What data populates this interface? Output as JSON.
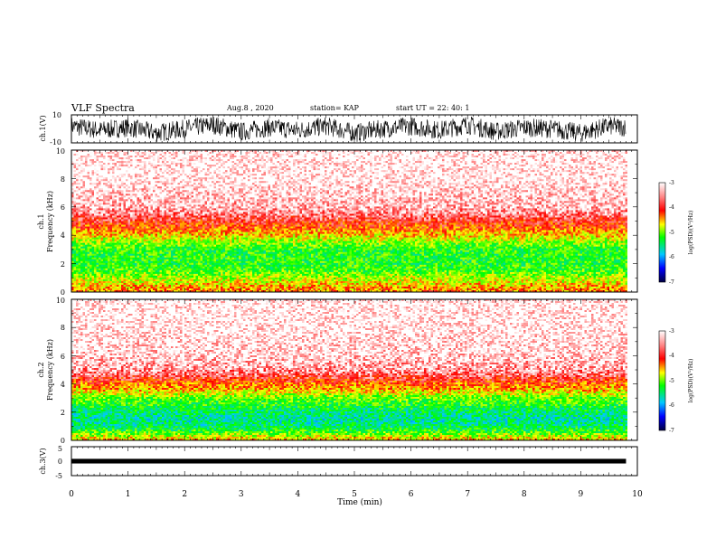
{
  "header": {
    "title": "VLF Spectra",
    "date": "Aug.8  , 2020",
    "station": "station= KAP",
    "start": "start  UT  =   22: 40: 1"
  },
  "chart_data": [
    {
      "type": "line",
      "panel": "ch1-waveform",
      "ylabel": "ch.1(V)",
      "ylim": [
        -10,
        10
      ],
      "ytick_labels": [
        "10",
        "-10"
      ],
      "xlim": [
        0,
        10
      ],
      "x_end": 9.8,
      "x": [
        0,
        0.5,
        1.0,
        1.5,
        2.0,
        2.5,
        3.0,
        3.5,
        4.0,
        4.5,
        5.0,
        5.5,
        6.0,
        6.5,
        7.0,
        7.5,
        8.0,
        8.5,
        9.0,
        9.5,
        9.8
      ],
      "values": [
        2,
        -1,
        1,
        -3,
        0,
        3,
        -2,
        1,
        -1,
        2,
        -3,
        0,
        2,
        -1,
        3,
        -2,
        1,
        0,
        -3,
        2,
        1
      ],
      "amplitude_band": [
        -9,
        9
      ]
    },
    {
      "type": "heatmap",
      "panel": "ch1-spectrogram",
      "ylabel": "Frequency (kHz)",
      "channel_label": "ch.1",
      "ylim": [
        0,
        10
      ],
      "ytick_labels": [
        "0",
        "2",
        "4",
        "6",
        "8",
        "10"
      ],
      "xlim": [
        0,
        10
      ],
      "x_end": 9.8,
      "colorbar": {
        "label": "log(PSD)(V²/Hz)",
        "range": [
          -7,
          -3
        ],
        "tick_labels": [
          "-3",
          "-4",
          "-5",
          "-6",
          "-7"
        ]
      },
      "log_psd_profile": {
        "freq_khz": [
          0,
          0.5,
          1,
          1.5,
          2,
          2.5,
          3,
          3.5,
          4,
          4.5,
          5,
          5.5,
          6,
          8,
          10
        ],
        "level": [
          -4.0,
          -4.3,
          -4.6,
          -4.9,
          -5.0,
          -5.0,
          -5.0,
          -4.7,
          -4.3,
          -4.0,
          -3.7,
          -3.4,
          -3.2,
          -3.0,
          -3.0
        ]
      }
    },
    {
      "type": "heatmap",
      "panel": "ch2-spectrogram",
      "ylabel": "Frequency (kHz)",
      "channel_label": "ch.2",
      "ylim": [
        0,
        10
      ],
      "ytick_labels": [
        "0",
        "2",
        "4",
        "6",
        "8",
        "10"
      ],
      "xlim": [
        0,
        10
      ],
      "x_end": 9.8,
      "colorbar": {
        "label": "log(PSD)(V²/Hz)",
        "range": [
          -7,
          -3
        ],
        "tick_labels": [
          "-3",
          "-4",
          "-5",
          "-6",
          "-7"
        ]
      },
      "log_psd_profile": {
        "freq_khz": [
          0,
          0.5,
          1,
          1.5,
          2,
          2.5,
          3,
          3.5,
          4,
          4.5,
          5,
          6,
          8,
          10
        ],
        "level": [
          -4.2,
          -4.8,
          -5.3,
          -5.4,
          -5.3,
          -5.0,
          -4.8,
          -4.3,
          -4.0,
          -3.6,
          -3.3,
          -3.1,
          -3.0,
          -3.0
        ]
      }
    },
    {
      "type": "line",
      "panel": "ch3-waveform",
      "ylabel": "ch.3(V)",
      "ylim": [
        -5,
        5
      ],
      "ytick_labels": [
        "5",
        "0",
        "-5"
      ],
      "xlim": [
        0,
        10
      ],
      "x_end": 9.8,
      "x": [
        0,
        9.8
      ],
      "values": [
        0,
        0
      ],
      "band": [
        -0.8,
        0.8
      ],
      "xlabel": "Time (min)",
      "xtick_labels": [
        "0",
        "1",
        "2",
        "3",
        "4",
        "5",
        "6",
        "7",
        "8",
        "9",
        "10"
      ]
    }
  ]
}
